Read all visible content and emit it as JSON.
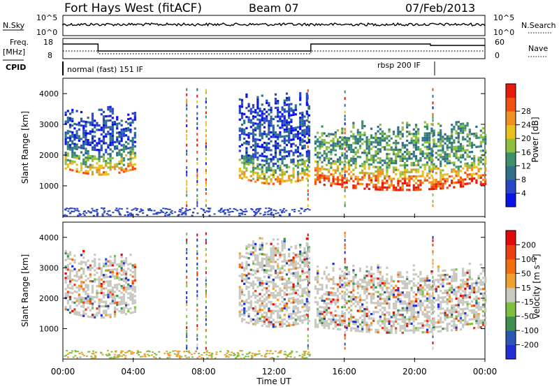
{
  "header": {
    "station": "Fort Hays West (fitACF)",
    "beam": "Beam 07",
    "date": "07/Feb/2013"
  },
  "top_panels": {
    "nsky_label": "N.Sky",
    "nsky_ticks": [
      "10^5",
      "10^0"
    ],
    "nsearch_label": "N.Search",
    "freq_label": "Freq.",
    "freq_unit": "[MHz]",
    "freq_ticks": [
      "18",
      "8"
    ],
    "nave_label": "Nave",
    "nave_ticks": [
      "60",
      "0"
    ],
    "cpid_label": "CPID",
    "cpid_segments": [
      "normal (fast) 151 IF",
      "rbsp 200 IF"
    ]
  },
  "colors": {
    "power": [
      "#0a14e6",
      "#2a46c8",
      "#2f6f8a",
      "#3f8f6a",
      "#8fbf40",
      "#e8c020",
      "#f09020",
      "#f05010",
      "#e81a0a"
    ],
    "velocity": [
      "#2030d0",
      "#2a58b0",
      "#3f8f50",
      "#80c040",
      "#c8c8c0",
      "#f0a030",
      "#f07010",
      "#e84010",
      "#e00a0a"
    ]
  },
  "chart_data": [
    {
      "type": "heatmap",
      "title": "Power",
      "ylabel": "Slant Range [km]",
      "ylim": [
        0,
        4500
      ],
      "yticks": [
        "1000",
        "2000",
        "3000",
        "4000"
      ],
      "colorbar_label": "Power [dB]",
      "colorbar_ticks": [
        "4",
        "8",
        "12",
        "16",
        "20",
        "24",
        "28"
      ],
      "regions": [
        {
          "t0": 0.1,
          "t1": 4.1,
          "r0": 1400,
          "r1": 3700,
          "level": 3
        },
        {
          "t0": 10.0,
          "t1": 14.0,
          "r0": 1100,
          "r1": 4100,
          "level": 3
        },
        {
          "t0": 14.3,
          "t1": 24.0,
          "r0": 900,
          "r1": 3200,
          "level": 5
        }
      ]
    },
    {
      "type": "heatmap",
      "title": "Velocity",
      "ylabel": "Slant Range [km]",
      "xlabel": "Time UT",
      "ylim": [
        0,
        4500
      ],
      "yticks": [
        "1000",
        "2000",
        "3000",
        "4000"
      ],
      "xticks": [
        "00:00",
        "04:00",
        "08:00",
        "12:00",
        "16:00",
        "20:00",
        "00:00"
      ],
      "colorbar_label": "Velocity [m s⁻¹]",
      "colorbar_ticks": [
        "200",
        "100",
        "50",
        "15",
        "-15",
        "-50",
        "-100",
        "-200"
      ],
      "regions": [
        {
          "t0": 0.1,
          "t1": 4.1,
          "r0": 1400,
          "r1": 3700,
          "level": 4
        },
        {
          "t0": 10.0,
          "t1": 14.0,
          "r0": 1100,
          "r1": 4100,
          "level": 3
        },
        {
          "t0": 14.3,
          "t1": 24.0,
          "r0": 900,
          "r1": 3200,
          "level": 4
        }
      ]
    }
  ]
}
